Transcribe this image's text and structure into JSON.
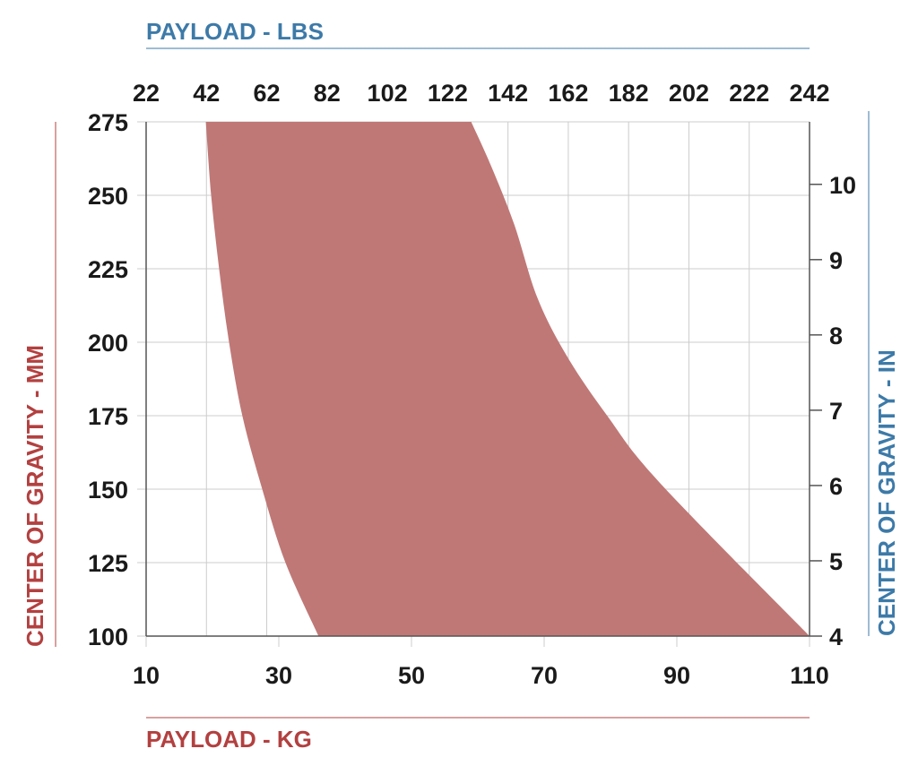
{
  "colors": {
    "region_fill": "#bf7876",
    "lbs_accent": "#3d7aa8",
    "kg_accent": "#b34040",
    "mm_accent": "#b34040",
    "in_accent": "#3d7aa8",
    "grid": "#cccccc",
    "frame": "#555555",
    "tick_text": "#1a1a1a"
  },
  "chart_data": {
    "type": "area",
    "description_of_axes": {
      "x_bottom": {
        "label": "PAYLOAD - KG",
        "range": [
          10,
          110
        ],
        "ticks": [
          10,
          30,
          50,
          70,
          90,
          110
        ]
      },
      "x_top": {
        "label": "PAYLOAD - LBS",
        "range": [
          22,
          242
        ],
        "ticks": [
          22,
          42,
          62,
          82,
          102,
          122,
          142,
          162,
          182,
          202,
          222,
          242
        ]
      },
      "y_left": {
        "label": "CENTER OF GRAVITY - MM",
        "range": [
          100,
          275
        ],
        "ticks": [
          100,
          125,
          150,
          175,
          200,
          225,
          250,
          275
        ]
      },
      "y_right": {
        "label": "CENTER OF GRAVITY - IN",
        "range": [
          4,
          10.83
        ],
        "ticks": [
          4,
          5,
          6,
          7,
          8,
          9,
          10
        ]
      }
    },
    "grid": true,
    "series": [
      {
        "name": "",
        "min_payload_kg": [
          [
            19,
            275
          ],
          [
            19.8,
            250
          ],
          [
            21,
            225
          ],
          [
            22.5,
            200
          ],
          [
            24.5,
            175
          ],
          [
            27.5,
            150
          ],
          [
            31,
            125
          ],
          [
            36,
            100
          ]
        ],
        "max_payload_kg": [
          [
            59,
            275
          ],
          [
            62,
            260
          ],
          [
            65.5,
            240
          ],
          [
            69,
            215
          ],
          [
            73.5,
            195
          ],
          [
            79.5,
            175
          ],
          [
            87.5,
            152
          ],
          [
            110,
            100
          ]
        ]
      }
    ]
  }
}
